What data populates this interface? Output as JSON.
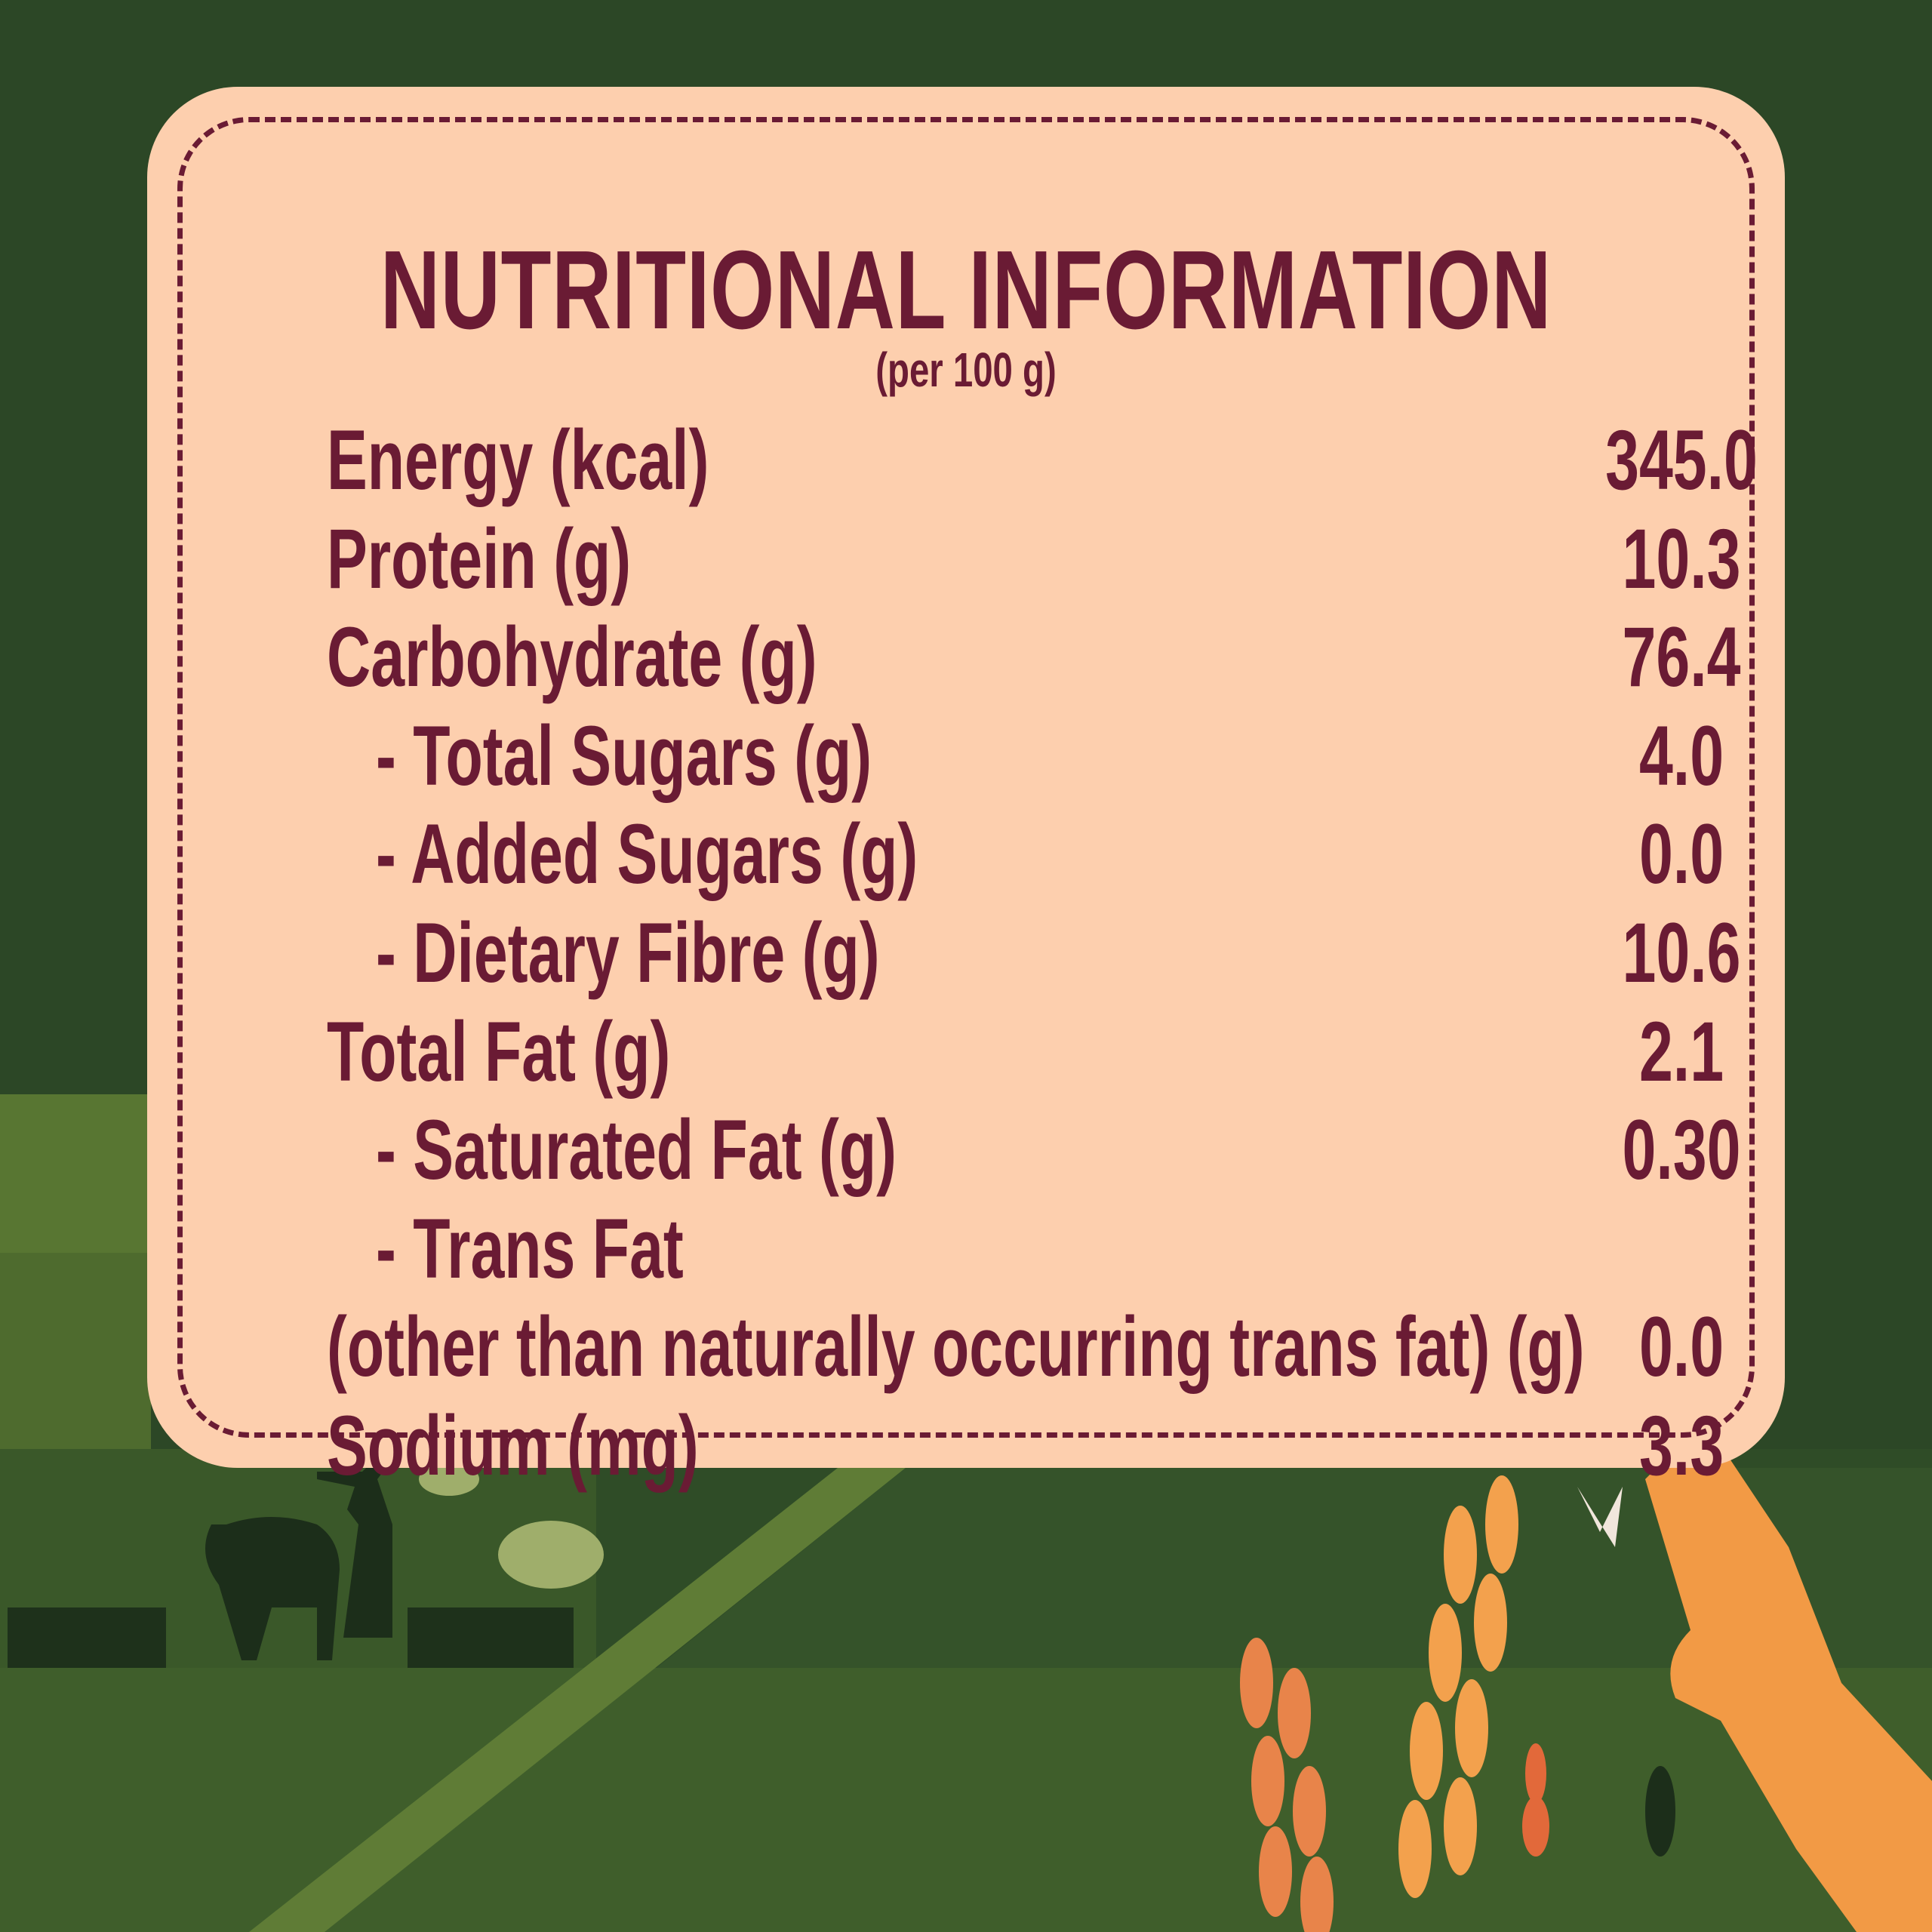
{
  "panel": {
    "title": "NUTRITIONAL INFORMATION",
    "subtitle": "(per 100 g)",
    "rows": [
      {
        "label": "Energy (kcal)",
        "value": "345.0",
        "indent": false
      },
      {
        "label": "Protein (g)",
        "value": "10.3",
        "indent": false
      },
      {
        "label": "Carbohydrate (g)",
        "value": "76.4",
        "indent": false
      },
      {
        "label": "- Total Sugars (g)",
        "value": "4.0",
        "indent": true
      },
      {
        "label": "- Added Sugars (g)",
        "value": "0.0",
        "indent": true
      },
      {
        "label": "- Dietary Fibre (g)",
        "value": "10.6",
        "indent": true
      },
      {
        "label": "Total Fat (g)",
        "value": "2.1",
        "indent": false
      },
      {
        "label": "- Saturated Fat (g)",
        "value": "0.30",
        "indent": true
      },
      {
        "label": "- Trans Fat",
        "value": "",
        "indent": true
      },
      {
        "label": "(other than naturally occurring trans fat) (g)",
        "value": "0.0",
        "indent": false
      },
      {
        "label": "Sodium (mg)",
        "value": "3.3",
        "indent": false
      }
    ]
  },
  "colors": {
    "background": "#2c4726",
    "field": "#5e7a35",
    "card": "#fdcfae",
    "text": "#6a1b34",
    "wheat": "#f08a3c"
  },
  "illustration": [
    "farmer-with-ox-icon",
    "wheat-stalks-icon",
    "hand-holding-wheat-icon"
  ]
}
